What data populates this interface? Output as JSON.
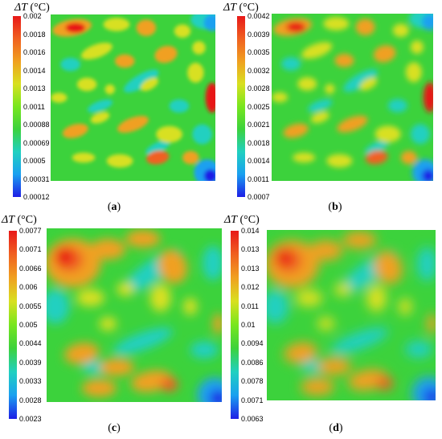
{
  "palette": [
    "#1e1ee6",
    "#1aa0f0",
    "#20d0c0",
    "#3cd23c",
    "#78e61e",
    "#d8e020",
    "#f0a020",
    "#f06020",
    "#e81818"
  ],
  "panels": [
    {
      "id": "a",
      "title_prefix": "ΔT",
      "title_unit": " (°C)",
      "caption": "a",
      "ticks": [
        "0.002",
        "0.0018",
        "0.0016",
        "0.0014",
        "0.0013",
        "0.0011",
        "0.00088",
        "0.00069",
        "0.0005",
        "0.00031",
        "0.00012"
      ],
      "range": [
        0.00012,
        0.002
      ]
    },
    {
      "id": "b",
      "title_prefix": "ΔT",
      "title_unit": " (°C)",
      "caption": "b",
      "ticks": [
        "0.0042",
        "0.0039",
        "0.0035",
        "0.0032",
        "0.0028",
        "0.0025",
        "0.0021",
        "0.0018",
        "0.0014",
        "0.0011",
        "0.0007"
      ],
      "range": [
        0.0007,
        0.0042
      ]
    },
    {
      "id": "c",
      "title_prefix": "ΔT",
      "title_unit": " (°C)",
      "caption": "c",
      "ticks": [
        "0.0077",
        "0.0071",
        "0.0066",
        "0.006",
        "0.0055",
        "0.005",
        "0.0044",
        "0.0039",
        "0.0033",
        "0.0028",
        "0.0023"
      ],
      "range": [
        0.0023,
        0.0077
      ]
    },
    {
      "id": "d",
      "title_prefix": "ΔT",
      "title_unit": " (°C)",
      "caption": "d",
      "ticks": [
        "0.014",
        "0.013",
        "0.013",
        "0.012",
        "0.011",
        "0.01",
        "0.0094",
        "0.0086",
        "0.0078",
        "0.0071",
        "0.0063"
      ],
      "range": [
        0.0063,
        0.014
      ]
    }
  ],
  "chart_data": {
    "type": "heatmap",
    "panels": [
      "a",
      "b",
      "c",
      "d"
    ],
    "colorbar_label": "ΔT (°C)",
    "ranges": {
      "a": [
        0.00012,
        0.002
      ],
      "b": [
        0.0007,
        0.0042
      ],
      "c": [
        0.0023,
        0.0077
      ],
      "d": [
        0.0063,
        0.014
      ]
    }
  }
}
